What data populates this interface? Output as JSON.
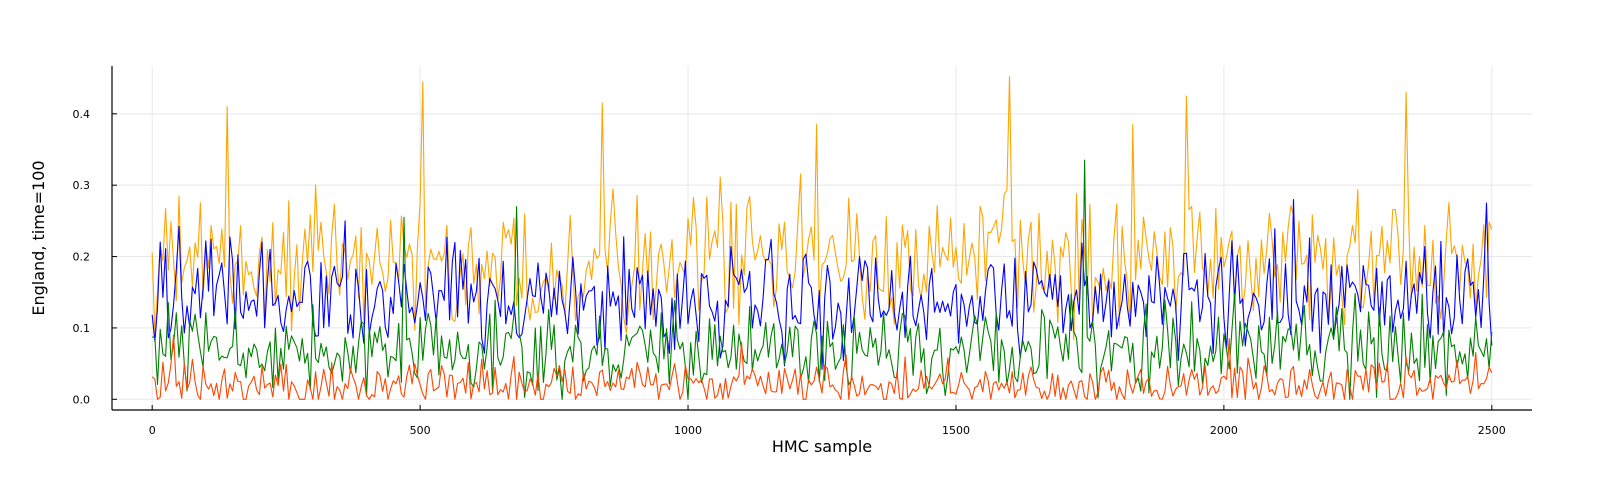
{
  "chart_data": {
    "type": "line",
    "title": "",
    "xlabel": "HMC sample",
    "ylabel": "England, time=100",
    "xlim": [
      -75,
      2575
    ],
    "ylim": [
      -0.015,
      0.467
    ],
    "xticks": [
      0,
      500,
      1000,
      1500,
      2000,
      2500
    ],
    "xtick_labels": [
      "0",
      "500",
      "1000",
      "1500",
      "2000",
      "2500"
    ],
    "yticks": [
      0.0,
      0.1,
      0.2,
      0.3,
      0.4
    ],
    "ytick_labels": [
      "0.0",
      "0.1",
      "0.2",
      "0.3",
      "0.4"
    ],
    "grid": true,
    "legend": "none",
    "n_samples": 2500,
    "sample_step": 5,
    "series": [
      {
        "color": "#FFA500",
        "typical": 0.19,
        "spread": 0.045,
        "spikes": [
          {
            "x": 140,
            "y": 0.41
          },
          {
            "x": 505,
            "y": 0.445
          },
          {
            "x": 840,
            "y": 0.415
          },
          {
            "x": 1240,
            "y": 0.385
          },
          {
            "x": 1600,
            "y": 0.452
          },
          {
            "x": 1830,
            "y": 0.385
          },
          {
            "x": 1930,
            "y": 0.425
          },
          {
            "x": 2340,
            "y": 0.43
          }
        ],
        "low": 0.05,
        "high": 0.35
      },
      {
        "color": "#0000FF",
        "typical": 0.14,
        "spread": 0.038,
        "spikes": [
          {
            "x": 360,
            "y": 0.25
          },
          {
            "x": 2130,
            "y": 0.28
          },
          {
            "x": 2490,
            "y": 0.275
          }
        ],
        "low": 0.02,
        "high": 0.25
      },
      {
        "color": "#008000",
        "typical": 0.065,
        "spread": 0.03,
        "spikes": [
          {
            "x": 680,
            "y": 0.27
          },
          {
            "x": 1740,
            "y": 0.335
          },
          {
            "x": 470,
            "y": 0.255
          }
        ],
        "low": 0.0,
        "high": 0.2
      },
      {
        "color": "#FF4500",
        "typical": 0.02,
        "spread": 0.017,
        "spikes": [
          {
            "x": 40,
            "y": 0.09
          },
          {
            "x": 1100,
            "y": 0.08
          },
          {
            "x": 2010,
            "y": 0.085
          }
        ],
        "low": 0.0,
        "high": 0.09
      }
    ]
  }
}
